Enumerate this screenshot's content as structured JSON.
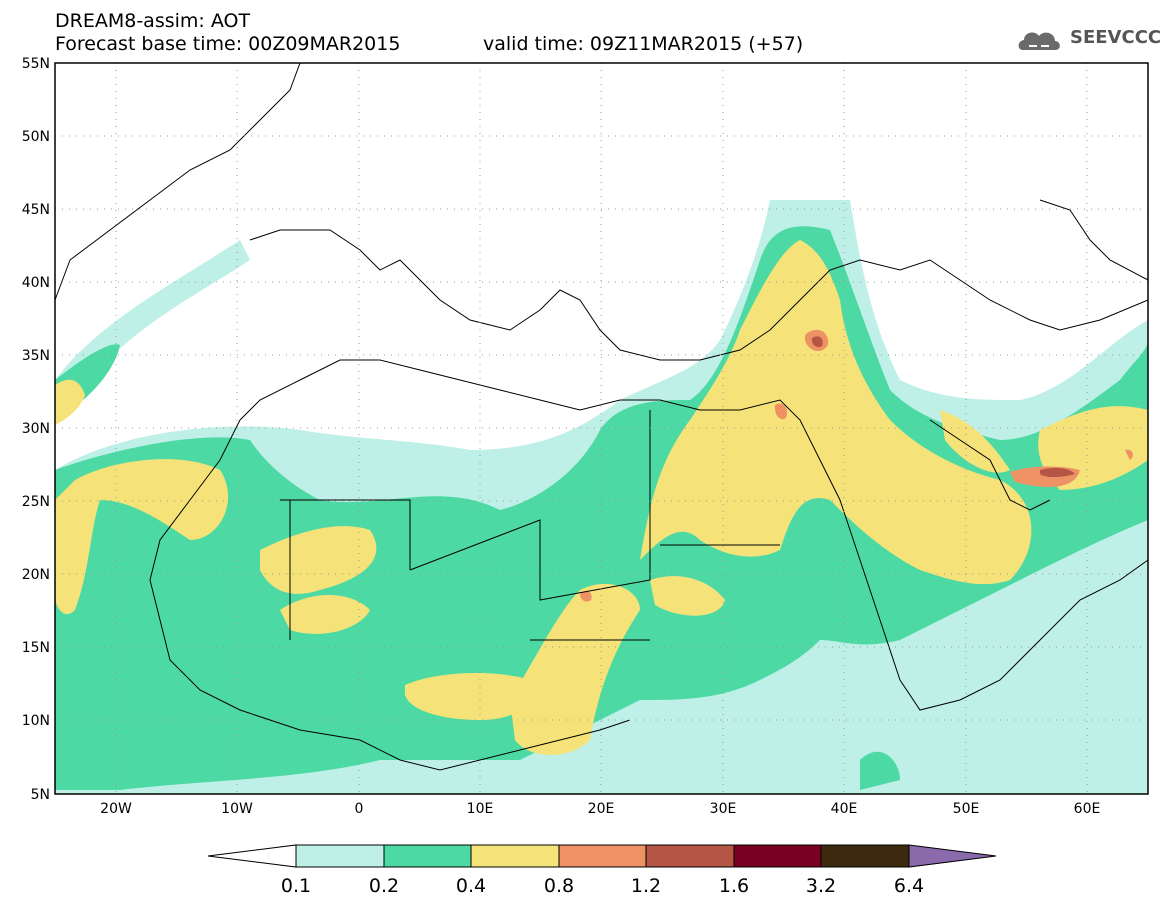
{
  "header": {
    "title_line1": "DREAM8-assim: AOT",
    "title_line2": "Forecast base time: 00Z09MAR2015",
    "valid_time": "valid time: 09Z11MAR2015 (+57)"
  },
  "logo": {
    "text": "SEEVCCC",
    "icon": "cloud-logo-icon"
  },
  "map": {
    "lat_labels": [
      "55N",
      "50N",
      "45N",
      "40N",
      "35N",
      "30N",
      "25N",
      "20N",
      "15N",
      "10N",
      "5N"
    ],
    "lon_labels": [
      "20W",
      "10W",
      "0",
      "10E",
      "20E",
      "30E",
      "40E",
      "50E",
      "60E"
    ],
    "lon_range": [
      -25,
      65
    ],
    "lat_range": [
      5,
      55
    ],
    "gridlines": "dotted"
  },
  "colorbar": {
    "labels": [
      "0.1",
      "0.2",
      "0.4",
      "0.8",
      "1.2",
      "1.6",
      "3.2",
      "6.4"
    ],
    "colors": [
      "#ffffff",
      "#bff0e8",
      "#4dd9a4",
      "#f5e37a",
      "#ee9266",
      "#b55545",
      "#7a0022",
      "#3d2810",
      "#8a6aaa"
    ]
  }
}
